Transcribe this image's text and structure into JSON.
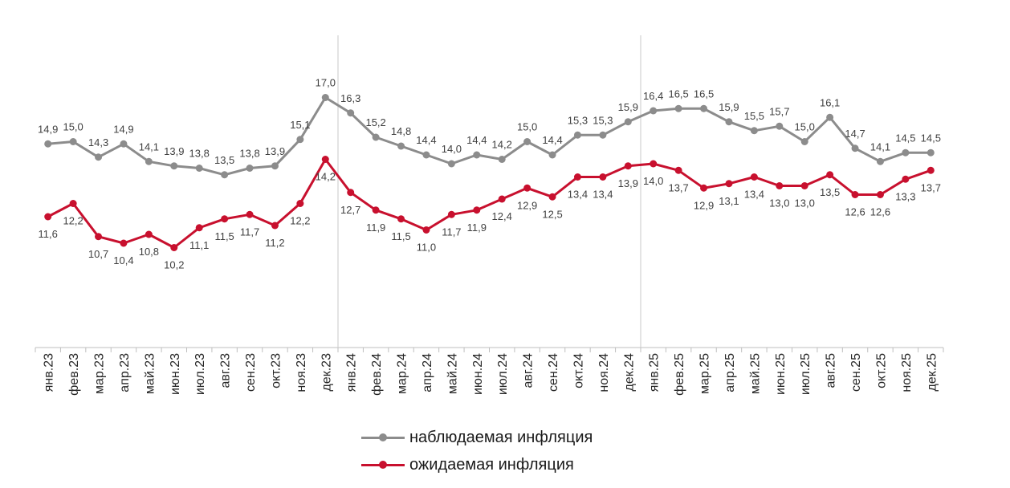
{
  "chart_data": {
    "type": "line",
    "categories": [
      "янв.23",
      "фев.23",
      "мар.23",
      "апр.23",
      "май.23",
      "июн.23",
      "июл.23",
      "авг.23",
      "сен.23",
      "окт.23",
      "ноя.23",
      "дек.23",
      "янв.24",
      "фев.24",
      "мар.24",
      "апр.24",
      "май.24",
      "июн.24",
      "июл.24",
      "авг.24",
      "сен.24",
      "окт.24",
      "ноя.24",
      "дек.24",
      "янв.25",
      "фев.25",
      "мар.25",
      "апр.25",
      "май.25",
      "июн.25",
      "июл.25",
      "авг.25",
      "сен.25",
      "окт.25",
      "ноя.25",
      "дек.25"
    ],
    "series": [
      {
        "name": "наблюдаемая инфляция",
        "color": "#8c8c8c",
        "values": [
          14.9,
          15.0,
          14.3,
          14.9,
          14.1,
          13.9,
          13.8,
          13.5,
          13.8,
          13.9,
          15.1,
          17.0,
          16.3,
          15.2,
          14.8,
          14.4,
          14.0,
          14.4,
          14.2,
          15.0,
          14.4,
          15.3,
          15.3,
          15.9,
          16.4,
          16.5,
          16.5,
          15.9,
          15.5,
          15.7,
          15.0,
          16.1,
          14.7,
          14.1,
          14.5,
          14.5
        ],
        "labels": [
          "14,9",
          "15,0",
          "14,3",
          "14,9",
          "14,1",
          "13,9",
          "13,8",
          "13,5",
          "13,8",
          "13,9",
          "15,1",
          "17,0",
          "16,3",
          "15,2",
          "14,8",
          "14,4",
          "14,0",
          "14,4",
          "14,2",
          "15,0",
          "14,4",
          "15,3",
          "15,3",
          "15,9",
          "16,4",
          "16,5",
          "16,5",
          "15,9",
          "15,5",
          "15,7",
          "15,0",
          "16,1",
          "14,7",
          "14,1",
          "14,5",
          "14,5"
        ]
      },
      {
        "name": "ожидаемая инфляция",
        "color": "#c8102e",
        "values": [
          11.6,
          12.2,
          10.7,
          10.4,
          10.8,
          10.2,
          11.1,
          11.5,
          11.7,
          11.2,
          12.2,
          14.2,
          12.7,
          11.9,
          11.5,
          11.0,
          11.7,
          11.9,
          12.4,
          12.9,
          12.5,
          13.4,
          13.4,
          13.9,
          14.0,
          13.7,
          12.9,
          13.1,
          13.4,
          13.0,
          13.0,
          13.5,
          12.6,
          12.6,
          13.3,
          13.7
        ],
        "labels": [
          "11,6",
          "12,2",
          "10,7",
          "10,4",
          "10,8",
          "10,2",
          "11,1",
          "11,5",
          "11,7",
          "11,2",
          "12,2",
          "14,2",
          "12,7",
          "11,9",
          "11,5",
          "11,0",
          "11,7",
          "11,9",
          "12,4",
          "12,9",
          "12,5",
          "13,4",
          "13,4",
          "13,9",
          "14,0",
          "13,7",
          "12,9",
          "13,1",
          "13,4",
          "13,0",
          "13,0",
          "13,5",
          "12,6",
          "12,6",
          "13,3",
          "13,7"
        ]
      }
    ],
    "grid": false,
    "legend_position": "bottom"
  }
}
